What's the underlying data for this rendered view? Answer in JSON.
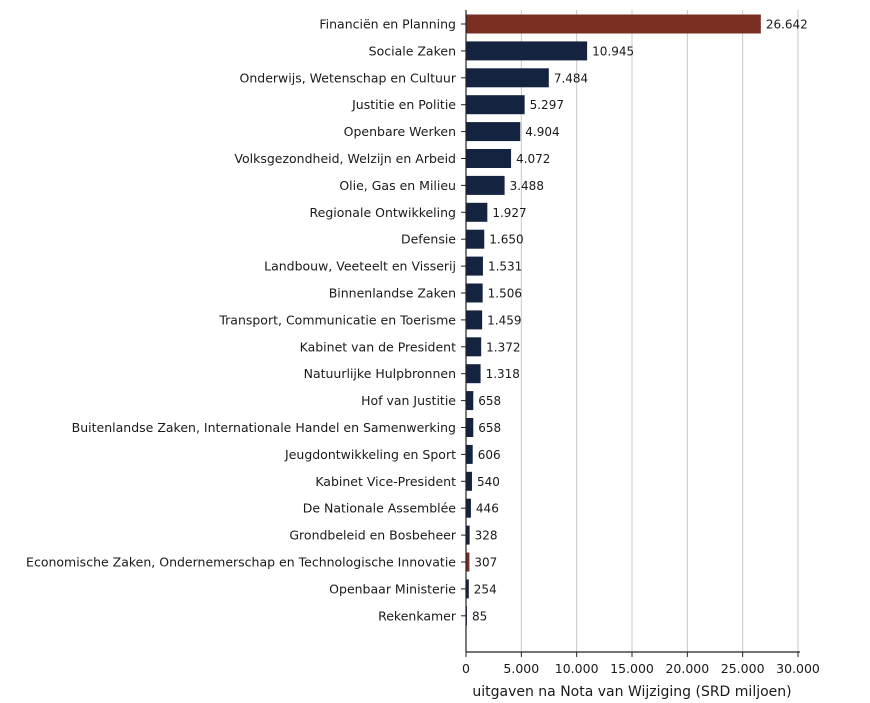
{
  "chart_data": {
    "type": "bar",
    "orientation": "horizontal",
    "categories": [
      "Financiën en Planning",
      "Sociale Zaken",
      "Onderwijs, Wetenschap en Cultuur",
      "Justitie en Politie",
      "Openbare Werken",
      "Volksgezondheid, Welzijn en Arbeid",
      "Olie, Gas en Milieu",
      "Regionale Ontwikkeling",
      "Defensie",
      "Landbouw, Veeteelt en Visserij",
      "Binnenlandse Zaken",
      "Transport, Communicatie en Toerisme",
      "Kabinet van de President",
      "Natuurlijke Hulpbronnen",
      "Hof van Justitie",
      "Buitenlandse Zaken, Internationale Handel en Samenwerking",
      "Jeugdontwikkeling en Sport",
      "Kabinet Vice-President",
      "De Nationale Assemblée",
      "Grondbeleid en Bosbeheer",
      "Economische Zaken, Ondernemerschap en Technologische Innovatie",
      "Openbaar Ministerie",
      "Rekenkamer"
    ],
    "values": [
      26642,
      10945,
      7484,
      5297,
      4904,
      4072,
      3488,
      1927,
      1650,
      1531,
      1506,
      1459,
      1372,
      1318,
      658,
      658,
      606,
      540,
      446,
      328,
      307,
      254,
      85
    ],
    "value_labels": [
      "26.642",
      "10.945",
      "7.484",
      "5.297",
      "4.904",
      "4.072",
      "3.488",
      "1.927",
      "1.650",
      "1.531",
      "1.506",
      "1.459",
      "1.372",
      "1.318",
      "658",
      "658",
      "606",
      "540",
      "446",
      "328",
      "307",
      "254",
      "85"
    ],
    "highlighted": [
      "Financiën en Planning",
      "Economische Zaken, Ondernemerschap en Technologische Innovatie"
    ],
    "colors": {
      "default": "#14233f",
      "highlight": "#7a2e22",
      "grid": "#c8c8c8",
      "axis": "#222222"
    },
    "xlabel": "uitgaven na Nota van Wijziging (SRD miljoen)",
    "ylabel": "",
    "title": "",
    "xlim": [
      0,
      30000
    ],
    "xticks": [
      0,
      5000,
      10000,
      15000,
      20000,
      25000,
      30000
    ],
    "xtick_labels": [
      "0",
      "5.000",
      "10.000",
      "15.000",
      "20.000",
      "25.000",
      "30.000"
    ],
    "grid": "vertical",
    "legend": "none"
  }
}
